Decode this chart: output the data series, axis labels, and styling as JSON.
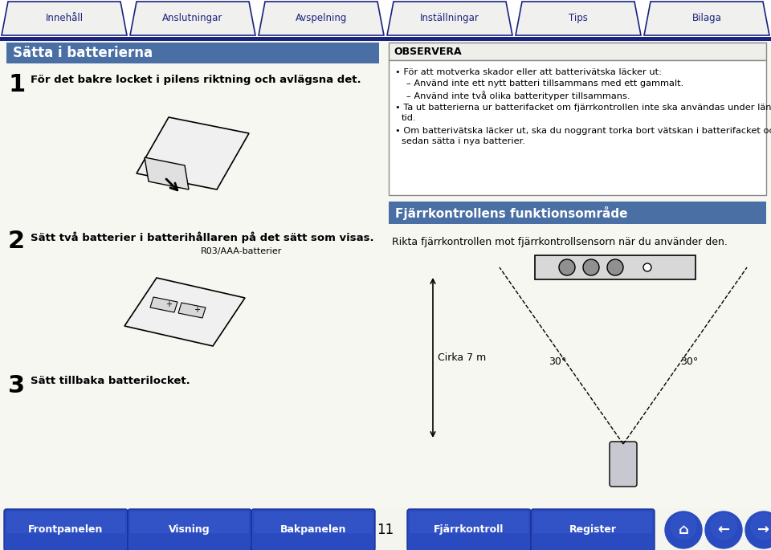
{
  "bg_color": "#f5f5f0",
  "top_bar_bg": "#ffffff",
  "top_bar_line_color": "#1a237e",
  "top_tab_fill": "#f0f0ee",
  "top_tab_border": "#1a237e",
  "top_tabs": [
    "Innehåll",
    "Anslutningar",
    "Avspelning",
    "Inställningar",
    "Tips",
    "Bilaga"
  ],
  "bottom_btn_color": "#2244bb",
  "bottom_btn_grad_top": "#3355cc",
  "bottom_btn_grad_bot": "#112299",
  "page_number": "11",
  "left_title": "Sätta i batterierna",
  "left_title_bg": "#4a6fa5",
  "left_title_color": "#ffffff",
  "step1_num": "1",
  "step1_text": "För det bakre locket i pilens riktning och avlägsna det.",
  "step2_num": "2",
  "step2_text": "Sätt två batterier i batterihållaren på det sätt som visas.",
  "step2_label": "R03/AAA-batterier",
  "step3_num": "3",
  "step3_text": "Sätt tillbaka batterilocket.",
  "obs_title": "OBSERVERA",
  "obs_header_bg": "#e8e8e0",
  "obs_border": "#555555",
  "obs_line1": "För att motverka skador eller att batterivätska läcker ut:",
  "obs_line2": "  Använd inte ett nytt batteri tillsammans med ett gammalt.",
  "obs_line3": "  Använd inte två olika batterityper tillsammans.",
  "obs_line4": "Ta ut batterierna ur batterifacket om fjärrkontrollen inte ska användas under längre",
  "obs_line4b": "tid.",
  "obs_line5": "Om batterivätska läcker ut, ska du noggrant torka bort vätskan i batterifacket och",
  "obs_line5b": "sedan sätta i nya batterier.",
  "right_section_title": "Fjärrkontrollens funktionsområde",
  "right_section_bg": "#4a6fa5",
  "right_section_color": "#ffffff",
  "right_section_text": "Rikta fjärrkontrollen mot fjärrkontrollsensorn när du använder den.",
  "circa_label": "Cirka 7 m",
  "angle_label": "30°",
  "left_btabs": [
    "Frontpanelen",
    "Visning",
    "Bakpanelen"
  ],
  "right_btabs": [
    "Fjärrkontroll",
    "Register"
  ]
}
